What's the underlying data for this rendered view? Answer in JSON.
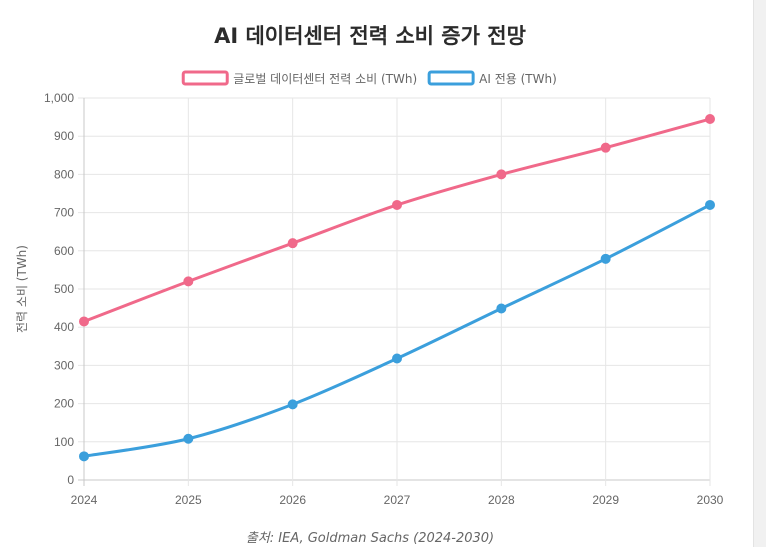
{
  "chart_data": {
    "type": "line",
    "title": "AI 데이터센터 전력 소비 증가 전망",
    "ylabel": "전력 소비 (TWh)",
    "xlabel": "",
    "x": [
      "2024",
      "2025",
      "2026",
      "2027",
      "2028",
      "2029",
      "2030"
    ],
    "ylim": [
      0,
      1000
    ],
    "y_ticks": [
      "0",
      "100",
      "200",
      "300",
      "400",
      "500",
      "600",
      "700",
      "800",
      "900",
      "1,000"
    ],
    "grid": true,
    "legend_position": "top",
    "series": [
      {
        "name": "글로벌 데이터센터 전력 소비 (TWh)",
        "values": [
          415,
          520,
          620,
          720,
          800,
          870,
          945
        ],
        "color": "#f0698a"
      },
      {
        "name": "AI 전용 (TWh)",
        "values": [
          62,
          108,
          198,
          318,
          449,
          579,
          720
        ],
        "color": "#3b9fdc"
      }
    ],
    "source": "출처: IEA, Goldman Sachs (2024-2030)"
  }
}
